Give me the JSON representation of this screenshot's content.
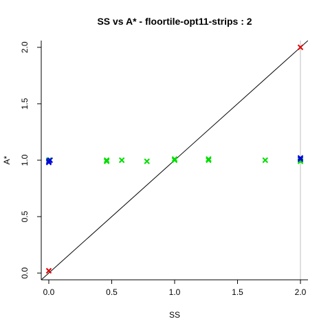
{
  "chart_data": {
    "type": "scatter",
    "title": "SS vs A* - floortile-opt11-strips : 2",
    "xlabel": "SS",
    "ylabel": "A*",
    "xlim": [
      -0.06,
      2.06
    ],
    "ylim": [
      -0.06,
      2.06
    ],
    "x_ticks": [
      "0.0",
      "0.5",
      "1.0",
      "1.5",
      "2.0"
    ],
    "y_ticks": [
      "0.0",
      "0.5",
      "1.0",
      "1.5",
      "2.0"
    ],
    "grid": false,
    "legend": "none",
    "marker": "x",
    "reference_lines": {
      "diagonal": "y = x",
      "vertical_x": 2.0,
      "vertical_color": "#bebebe"
    },
    "series": [
      {
        "color": "#dd0000",
        "points": [
          [
            0.0,
            0.02
          ],
          [
            2.0,
            2.0
          ]
        ]
      },
      {
        "color": "#00dd00",
        "points": [
          [
            0.0,
            1.0
          ],
          [
            0.46,
            0.99
          ],
          [
            0.46,
            1.0
          ],
          [
            0.58,
            1.0
          ],
          [
            0.78,
            0.99
          ],
          [
            1.0,
            1.0
          ],
          [
            1.0,
            1.01
          ],
          [
            1.27,
            1.0
          ],
          [
            1.27,
            1.01
          ],
          [
            1.72,
            1.0
          ],
          [
            2.0,
            0.99
          ],
          [
            2.0,
            1.0
          ]
        ]
      },
      {
        "color": "#0000dd",
        "points": [
          [
            0.0,
            0.98
          ],
          [
            0.0,
            0.99
          ],
          [
            0.01,
            1.0
          ],
          [
            2.0,
            1.01
          ],
          [
            2.0,
            1.02
          ]
        ]
      }
    ]
  }
}
